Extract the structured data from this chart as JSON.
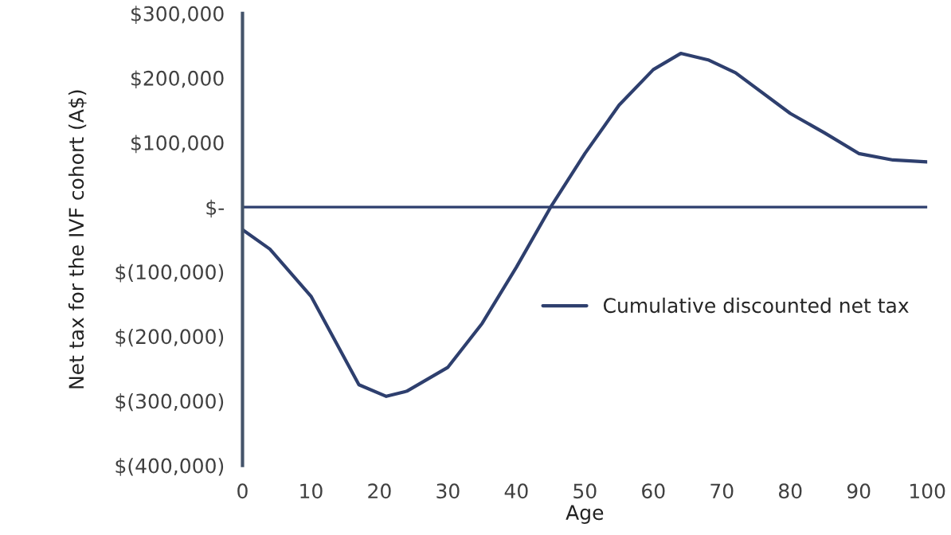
{
  "chart_data": {
    "type": "line",
    "xlabel": "Age",
    "ylabel": "Net tax for the IVF cohort (A$)",
    "x": [
      0,
      4,
      10,
      17,
      21,
      24,
      30,
      35,
      40,
      45,
      50,
      55,
      60,
      64,
      68,
      72,
      80,
      85,
      90,
      95,
      100
    ],
    "series": [
      {
        "name": "Cumulative discounted net tax",
        "color": "#2e3f6e",
        "values": [
          -35000,
          -65000,
          -138000,
          -275000,
          -293000,
          -285000,
          -248000,
          -180000,
          -93000,
          0,
          83000,
          158000,
          213000,
          238000,
          228000,
          208000,
          145000,
          115000,
          83000,
          73000,
          70000
        ]
      }
    ],
    "xlim": [
      0,
      100
    ],
    "xticks": [
      0,
      10,
      20,
      30,
      40,
      50,
      60,
      70,
      80,
      90,
      100
    ],
    "ylim": [
      -400000,
      300000
    ],
    "yticks": [
      {
        "value": -400000,
        "label": "$(400,000)"
      },
      {
        "value": -300000,
        "label": "$(300,000)"
      },
      {
        "value": -200000,
        "label": "$(200,000)"
      },
      {
        "value": -100000,
        "label": "$(100,000)"
      },
      {
        "value": 0,
        "label": "$-"
      },
      {
        "value": 100000,
        "label": "$100,000"
      },
      {
        "value": 200000,
        "label": "$200,000"
      },
      {
        "value": 300000,
        "label": "$300,000"
      }
    ],
    "ref_lines": [
      {
        "axis": "y",
        "value": 0,
        "color": "#2e3f6e"
      }
    ],
    "grid": false,
    "legend": "right",
    "marker": "none",
    "line_style": "solid"
  }
}
